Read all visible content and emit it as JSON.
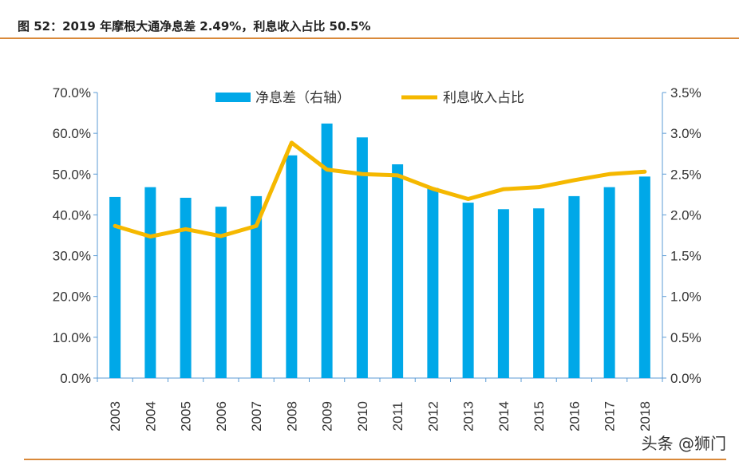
{
  "title": "图 52：2019 年摩根大通净息差 2.49%，利息收入占比 50.5%",
  "watermark": "头条 @狮门",
  "chart_data": {
    "type": "bar+line",
    "categories": [
      "2003",
      "2004",
      "2005",
      "2006",
      "2007",
      "2008",
      "2009",
      "2010",
      "2011",
      "2012",
      "2013",
      "2014",
      "2015",
      "2016",
      "2017",
      "2018"
    ],
    "series": [
      {
        "name": "净息差（右轴）",
        "type": "bar",
        "axis": "right",
        "color": "#00a8e8",
        "values": [
          2.22,
          2.34,
          2.21,
          2.1,
          2.23,
          2.73,
          3.12,
          2.95,
          2.62,
          2.33,
          2.15,
          2.07,
          2.08,
          2.23,
          2.34,
          2.47
        ]
      },
      {
        "name": "利息收入占比",
        "type": "line",
        "axis": "left",
        "color": "#f5b800",
        "values": [
          37.3,
          34.7,
          36.5,
          34.8,
          37.3,
          57.7,
          51.1,
          50.0,
          49.7,
          46.4,
          43.9,
          46.3,
          46.8,
          48.5,
          50.0,
          50.6
        ]
      }
    ],
    "left_axis": {
      "ylim": [
        0,
        70
      ],
      "ticks": [
        "0.0%",
        "10.0%",
        "20.0%",
        "30.0%",
        "40.0%",
        "50.0%",
        "60.0%",
        "70.0%"
      ]
    },
    "right_axis": {
      "ylim": [
        0,
        3.5
      ],
      "ticks": [
        "0.0%",
        "0.5%",
        "1.0%",
        "1.5%",
        "2.0%",
        "2.5%",
        "3.0%",
        "3.5%"
      ]
    },
    "legend_placement": "top",
    "grid": false
  }
}
